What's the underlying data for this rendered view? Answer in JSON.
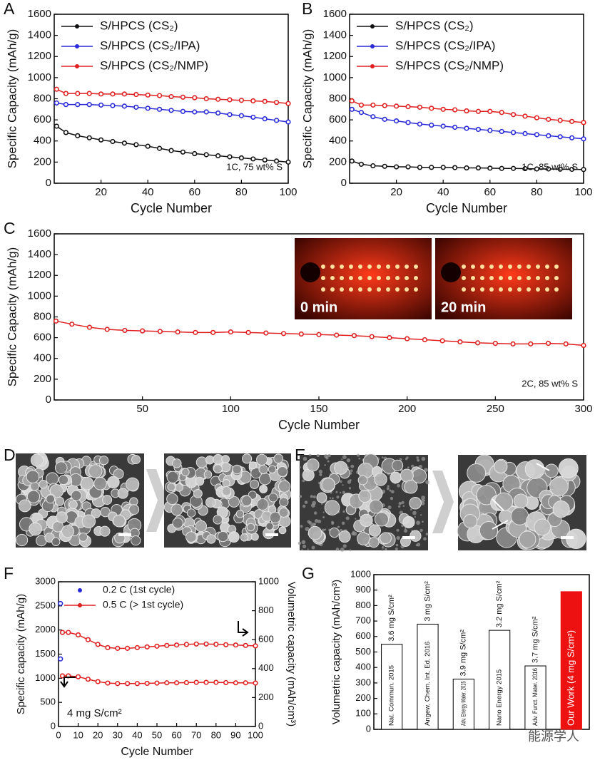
{
  "panel_labels": [
    "A",
    "B",
    "C",
    "D",
    "E",
    "F",
    "G"
  ],
  "watermark": "能源学人",
  "chart_data": [
    {
      "type": "line",
      "xlabel": "Cycle Number",
      "ylabel": "Specific Capacity (mAh/g)",
      "x": [
        1,
        5,
        10,
        15,
        20,
        25,
        30,
        35,
        40,
        45,
        50,
        55,
        60,
        65,
        70,
        75,
        80,
        85,
        90,
        95,
        100
      ],
      "xlim": [
        0,
        100
      ],
      "xticks": [
        20,
        40,
        60,
        80,
        100
      ],
      "ylim": [
        0,
        1600
      ],
      "yticks": [
        0,
        200,
        400,
        600,
        800,
        1000,
        1200,
        1400,
        1600
      ],
      "legend": "upper left",
      "annotation": "1C, 75 wt% S",
      "series": [
        {
          "name": "S/HPCS (CS₂)",
          "color": "#111111",
          "values": [
            540,
            480,
            450,
            430,
            410,
            395,
            380,
            365,
            350,
            330,
            310,
            295,
            280,
            270,
            260,
            250,
            240,
            230,
            220,
            210,
            200
          ]
        },
        {
          "name": "S/HPCS (CS₂/IPA)",
          "color": "#2a2ad8",
          "values": [
            760,
            745,
            745,
            745,
            740,
            735,
            730,
            720,
            710,
            700,
            690,
            680,
            675,
            675,
            665,
            650,
            640,
            625,
            610,
            595,
            580
          ]
        },
        {
          "name": "S/HPCS (CS₂/NMP)",
          "color": "#e02020",
          "values": [
            890,
            850,
            850,
            850,
            845,
            845,
            845,
            840,
            835,
            830,
            820,
            815,
            810,
            800,
            795,
            790,
            785,
            780,
            775,
            765,
            755
          ]
        }
      ]
    },
    {
      "type": "line",
      "xlabel": "Cycle Number",
      "ylabel": "Specific Capacity (mAh/g)",
      "x": [
        1,
        5,
        10,
        15,
        20,
        25,
        30,
        35,
        40,
        45,
        50,
        55,
        60,
        65,
        70,
        75,
        80,
        85,
        90,
        95,
        100
      ],
      "xlim": [
        0,
        100
      ],
      "xticks": [
        20,
        40,
        60,
        80,
        100
      ],
      "ylim": [
        0,
        1600
      ],
      "yticks": [
        0,
        200,
        400,
        600,
        800,
        1000,
        1200,
        1400,
        1600
      ],
      "legend": "upper left",
      "annotation": "1C, 85 wt% S",
      "series": [
        {
          "name": "S/HPCS (CS₂)",
          "color": "#111111",
          "values": [
            210,
            180,
            165,
            160,
            155,
            155,
            150,
            150,
            150,
            148,
            145,
            145,
            143,
            140,
            140,
            138,
            135,
            135,
            133,
            132,
            130
          ]
        },
        {
          "name": "S/HPCS (CS₂/IPA)",
          "color": "#2a2ad8",
          "values": [
            700,
            670,
            630,
            605,
            590,
            575,
            560,
            550,
            540,
            530,
            520,
            510,
            500,
            490,
            480,
            470,
            460,
            450,
            440,
            430,
            420
          ]
        },
        {
          "name": "S/HPCS (CS₂/NMP)",
          "color": "#e02020",
          "values": [
            780,
            740,
            740,
            735,
            730,
            725,
            720,
            710,
            700,
            695,
            685,
            680,
            680,
            670,
            650,
            635,
            620,
            605,
            595,
            585,
            575
          ]
        }
      ]
    },
    {
      "type": "line",
      "xlabel": "Cycle Number",
      "ylabel": "Specific Capacity (mAh/g)",
      "x": [
        1,
        10,
        20,
        30,
        40,
        50,
        60,
        70,
        80,
        90,
        100,
        110,
        120,
        130,
        140,
        150,
        160,
        170,
        180,
        190,
        200,
        210,
        220,
        230,
        240,
        250,
        260,
        270,
        280,
        290,
        300
      ],
      "xlim": [
        0,
        300
      ],
      "xticks": [
        50,
        100,
        150,
        200,
        250,
        300
      ],
      "ylim": [
        0,
        1600
      ],
      "yticks": [
        0,
        200,
        400,
        600,
        800,
        1000,
        1200,
        1400,
        1600
      ],
      "annotation": "2C, 85 wt% S",
      "inset_labels": [
        "0 min",
        "20 min"
      ],
      "series": [
        {
          "color": "#e02020",
          "values": [
            760,
            730,
            700,
            680,
            670,
            665,
            660,
            655,
            650,
            650,
            655,
            650,
            645,
            640,
            635,
            630,
            625,
            620,
            610,
            600,
            590,
            580,
            570,
            560,
            550,
            545,
            540,
            540,
            545,
            540,
            525
          ]
        }
      ]
    },
    {
      "type": "line",
      "xlabel": "Cycle Number",
      "ylabel": "Specific capacity (mAh/g)",
      "y2label": "Volumetric capacity (mAh/cm³)",
      "xlim": [
        0,
        100
      ],
      "xticks": [
        0,
        10,
        20,
        30,
        40,
        50,
        60,
        70,
        80,
        90,
        100
      ],
      "ylim": [
        0,
        3000
      ],
      "yticks": [
        0,
        500,
        1000,
        1500,
        2000,
        2500,
        3000
      ],
      "y2lim": [
        0,
        1000
      ],
      "y2ticks": [
        0,
        200,
        400,
        600,
        800,
        1000
      ],
      "legend": "upper left",
      "annotation": "4 mg S/cm²",
      "series": [
        {
          "name": "0.2 C (1st cycle)",
          "color": "#2a2ad8",
          "x": [
            1
          ],
          "values": [
            2550
          ]
        },
        {
          "name": "0.5 C (> 1st cycle)",
          "color": "#e02020",
          "x": [
            2,
            5,
            10,
            15,
            20,
            25,
            30,
            35,
            40,
            45,
            50,
            55,
            60,
            65,
            70,
            75,
            80,
            85,
            90,
            95,
            100
          ],
          "values": [
            1050,
            1050,
            1030,
            980,
            930,
            900,
            890,
            890,
            890,
            895,
            900,
            905,
            905,
            910,
            915,
            915,
            915,
            910,
            905,
            905,
            900
          ]
        },
        {
          "color": "#2a2ad8",
          "axis": "y2",
          "x": [
            1
          ],
          "values": [
            467
          ]
        },
        {
          "color": "#e02020",
          "axis": "y2",
          "x": [
            2,
            5,
            10,
            15,
            20,
            25,
            30,
            35,
            40,
            45,
            50,
            55,
            60,
            65,
            70,
            75,
            80,
            85,
            90,
            95,
            100
          ],
          "values": [
            650,
            650,
            633,
            600,
            567,
            545,
            540,
            540,
            545,
            550,
            555,
            560,
            563,
            567,
            570,
            570,
            568,
            565,
            563,
            560,
            557
          ]
        }
      ]
    },
    {
      "type": "bar",
      "ylabel": "Volumetric capacity (mAh/cm³)",
      "categories": [
        "Nat. Commun. 2015",
        "Angew. Chem. Int. Ed. 2016",
        "Adv. Energy Mater. 2015",
        "Nano Energy 2015",
        "Adv. Funct. Mater. 2016",
        "Our Work (4 mg S/cm²)"
      ],
      "values": [
        550,
        680,
        325,
        640,
        410,
        890
      ],
      "loadings": [
        "3.6 mg S/cm²",
        "3 mg S/cm²",
        "3.9 mg S/cm²",
        "3.2 mg S/cm²",
        "3.7 mg S/cm²",
        null
      ],
      "colors": [
        "#ffffff",
        "#ffffff",
        "#ffffff",
        "#ffffff",
        "#ffffff",
        "#ee1111"
      ],
      "ylim": [
        0,
        1000
      ],
      "yticks": [
        0,
        100,
        200,
        300,
        400,
        500,
        600,
        700,
        800,
        900,
        1000
      ]
    }
  ]
}
